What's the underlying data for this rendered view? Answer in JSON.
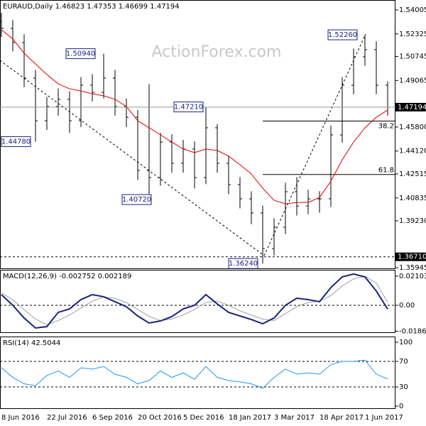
{
  "chart_data": [
    {
      "type": "ohlc",
      "title": "EURAUD,Daily  1.46823 1.47353 1.46699 1.47194",
      "watermark": "ActionForex.com",
      "categories": [
        "8 Jun 2016",
        null,
        null,
        null,
        "22 Jul 2016",
        null,
        null,
        null,
        "6 Sep 2016",
        null,
        null,
        null,
        "20 Oct 2016",
        null,
        null,
        null,
        "5 Dec 2016",
        null,
        null,
        null,
        "18 Jan 2017",
        null,
        null,
        null,
        "3 Mar 2017",
        null,
        null,
        null,
        "18 Apr 2017",
        null,
        null,
        null,
        "1 Jun 2017",
        null,
        null
      ],
      "open": [
        1.532,
        1.5271,
        1.5172,
        1.4923,
        1.4624,
        1.4724,
        1.4774,
        1.4624,
        1.4873,
        1.4823,
        1.4923,
        1.4724,
        1.4649,
        1.4276,
        1.4226,
        1.4475,
        1.4326,
        1.4426,
        1.4226,
        1.4575,
        1.4326,
        1.4177,
        1.4077,
        1.3978,
        1.3729,
        1.3878,
        1.4127,
        1.4027,
        1.4077,
        1.4077,
        1.4525,
        1.4873,
        1.5072,
        1.5122,
        1.4873
      ],
      "high": [
        1.538,
        1.533,
        1.523,
        1.498,
        1.479,
        1.485,
        1.483,
        1.493,
        1.495,
        1.5094,
        1.498,
        1.478,
        1.47,
        1.488,
        1.454,
        1.453,
        1.449,
        1.448,
        1.4721,
        1.46,
        1.438,
        1.423,
        1.413,
        1.403,
        1.394,
        1.419,
        1.423,
        1.414,
        1.413,
        1.459,
        1.493,
        1.513,
        1.5226,
        1.518,
        1.49
      ],
      "low": [
        1.521,
        1.511,
        1.486,
        1.4478,
        1.456,
        1.466,
        1.454,
        1.458,
        1.476,
        1.478,
        1.466,
        1.458,
        1.421,
        1.4072,
        1.417,
        1.426,
        1.426,
        1.415,
        1.418,
        1.426,
        1.411,
        1.401,
        1.39,
        1.3624,
        1.368,
        1.383,
        1.396,
        1.397,
        1.398,
        1.402,
        1.447,
        1.481,
        1.501,
        1.481,
        1.466
      ],
      "close": [
        1.5271,
        1.5172,
        1.4923,
        1.4624,
        1.4724,
        1.4774,
        1.4624,
        1.4873,
        1.4823,
        1.4923,
        1.4724,
        1.4649,
        1.4276,
        1.4226,
        1.4475,
        1.4326,
        1.4426,
        1.4226,
        1.4575,
        1.4326,
        1.4177,
        1.4077,
        1.3978,
        1.3729,
        1.3878,
        1.4127,
        1.4027,
        1.4077,
        1.4077,
        1.4525,
        1.4873,
        1.5072,
        1.5122,
        1.4873,
        1.47194
      ],
      "color": "#000000",
      "overlay": {
        "color": "#e00000",
        "values": [
          1.5261,
          1.5197,
          1.5097,
          1.5022,
          1.4948,
          1.4883,
          1.4848,
          1.4833,
          1.4813,
          1.4799,
          1.4774,
          1.4724,
          1.4624,
          1.4575,
          1.4525,
          1.4475,
          1.4426,
          1.4401,
          1.4426,
          1.4416,
          1.4376,
          1.4316,
          1.4251,
          1.4152,
          1.4067,
          1.4042,
          1.4052,
          1.4052,
          1.4087,
          1.4201,
          1.4351,
          1.4475,
          1.4575,
          1.4649,
          1.4699
        ]
      },
      "ylim": [
        1.359,
        1.547
      ],
      "yticks": [
        1.54005,
        1.52325,
        1.50745,
        1.49065,
        {
          "value": 1.458,
          "label": "1.45800"
        },
        {
          "value": 1.4412,
          "label": "1.44120"
        },
        1.42515,
        1.40835,
        {
          "value": 1.3923,
          "label": "1.39230"
        },
        1.35945
      ],
      "annotations": [
        {
          "value": 1.5094,
          "label": "1.50940"
        },
        {
          "value": 1.4721,
          "label": "1.47210"
        },
        {
          "value": 1.4478,
          "label": "1.44780"
        },
        {
          "value": 1.4072,
          "label": "1.40720"
        },
        {
          "value": 1.5226,
          "label": "1.52260"
        },
        {
          "value": 1.3624,
          "label": "1.36240"
        }
      ],
      "fib_levels": [
        {
          "level": 38.2,
          "price": 1.4622
        },
        {
          "level": 61.8,
          "price": 1.4248
        }
      ],
      "support": {
        "value": 1.3671,
        "label": "1.36710"
      }
    },
    {
      "type": "line",
      "title": "MACD(12,26,9) -0.002752 0.002189",
      "series": [
        {
          "color": "#1a237e",
          "values": [
            0.0077,
            0,
            -0.0092,
            -0.0164,
            -0.0154,
            -0.0051,
            -0.0026,
            0.0041,
            0.0077,
            0.0062,
            0.0026,
            -0.001,
            -0.0077,
            -0.0128,
            -0.0113,
            -0.0082,
            -0.0026,
            0,
            0.0077,
            0.001,
            -0.0051,
            -0.0077,
            -0.0103,
            -0.0133,
            -0.0092,
            0,
            0.0051,
            0.0041,
            0.0026,
            0.0128,
            0.0205,
            0.0226,
            0.0205,
            0.0103,
            -0.002752
          ]
        },
        {
          "color": "#a0a0a0",
          "values": [
            0.009,
            0.004,
            -0.003,
            -0.01,
            -0.014,
            -0.011,
            -0.007,
            -0.002,
            0.003,
            0.006,
            0.005,
            0.002,
            -0.003,
            -0.008,
            -0.011,
            -0.01,
            -0.007,
            -0.003,
            0.002,
            0.003,
            0,
            -0.004,
            -0.007,
            -0.01,
            -0.011,
            -0.006,
            -0.001,
            0.002,
            0.003,
            0.007,
            0.014,
            0.019,
            0.021,
            0.016,
            0.002189
          ]
        }
      ],
      "ylim": [
        -0.0195,
        0.02565
      ],
      "yticks": [
        0.021032,
        {
          "value": 0,
          "label": "0.00"
        },
        -0.018699
      ],
      "guides": [
        0
      ]
    },
    {
      "type": "line",
      "title": "RSI(14) 42.5044",
      "series": [
        {
          "color": "#2196f3",
          "values": [
            60,
            45,
            35,
            32,
            48,
            55,
            45,
            60,
            58,
            62,
            50,
            45,
            35,
            40,
            55,
            45,
            52,
            42,
            62,
            45,
            40,
            38,
            35,
            28,
            45,
            58,
            50,
            52,
            50,
            65,
            70,
            70,
            72,
            50,
            42.5044
          ]
        }
      ],
      "ylim": [
        -3.3,
        107.8
      ],
      "yticks": [
        100,
        70,
        30,
        0
      ],
      "guides": [
        70,
        30
      ]
    }
  ]
}
